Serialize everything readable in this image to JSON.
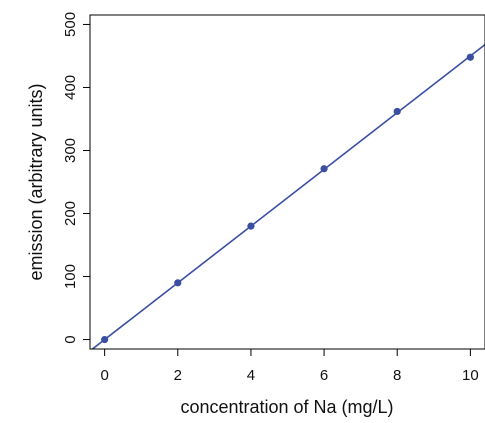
{
  "chart_data": {
    "type": "scatter",
    "title": "",
    "xlabel": "concentration of Na (mg/L)",
    "ylabel": "emission (arbitrary units)",
    "xlim": [
      -0.4,
      10.4
    ],
    "ylim": [
      -15,
      515
    ],
    "xticks": [
      0,
      2,
      4,
      6,
      8,
      10
    ],
    "yticks": [
      0,
      100,
      200,
      300,
      400,
      500
    ],
    "grid": false,
    "series": [
      {
        "points": [
          {
            "x": 0,
            "y": 0
          },
          {
            "x": 2,
            "y": 90
          },
          {
            "x": 4,
            "y": 180
          },
          {
            "x": 6,
            "y": 271
          },
          {
            "x": 8,
            "y": 362
          },
          {
            "x": 10,
            "y": 448
          }
        ],
        "color": "#3a4ea3"
      }
    ],
    "fit_line": {
      "slope": 45,
      "intercept": 0,
      "color": "#3a4ea3"
    }
  }
}
